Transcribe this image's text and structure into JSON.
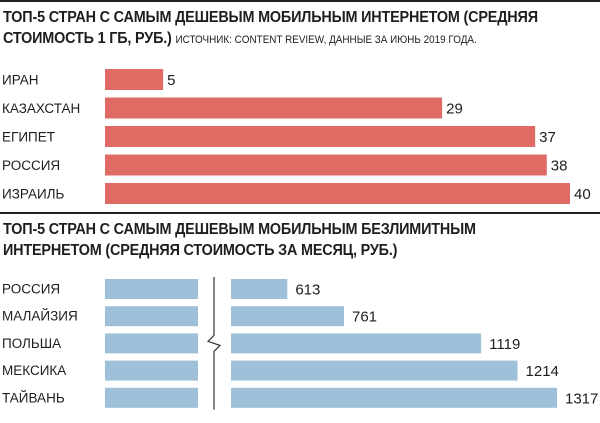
{
  "chart_data": [
    {
      "type": "bar",
      "orientation": "horizontal",
      "title": "ТОП-5 СТРАН С САМЫМ ДЕШЕВЫМ МОБИЛЬНЫМ ИНТЕРНЕТОМ (СРЕДНЯЯ СТОИМОСТЬ 1 ГБ, РУБ.)",
      "source": "ИСТОЧНИК: CONTENT REVIEW, ДАННЫЕ ЗА ИЮНЬ 2019 ГОДА.",
      "categories": [
        "ИРАН",
        "КАЗАХСТАН",
        "ЕГИПЕТ",
        "РОССИЯ",
        "ИЗРАИЛЬ"
      ],
      "values": [
        5,
        29,
        37,
        38,
        40
      ],
      "color": "#e06a64",
      "axis_break": false
    },
    {
      "type": "bar",
      "orientation": "horizontal",
      "title": "ТОП-5 СТРАН С САМЫМ ДЕШЕВЫМ МОБИЛЬНЫМ БЕЗЛИМИТНЫМ ИНТЕРНЕТОМ (СРЕДНЯЯ СТОИМОСТЬ ЗА МЕСЯЦ, РУБ.)",
      "categories": [
        "РОССИЯ",
        "МАЛАЙЗИЯ",
        "ПОЛЬША",
        "МЕКСИКА",
        "ТАЙВАНЬ"
      ],
      "values": [
        613,
        761,
        1119,
        1214,
        1317
      ],
      "color": "#9ec0d9",
      "axis_break": true
    }
  ]
}
